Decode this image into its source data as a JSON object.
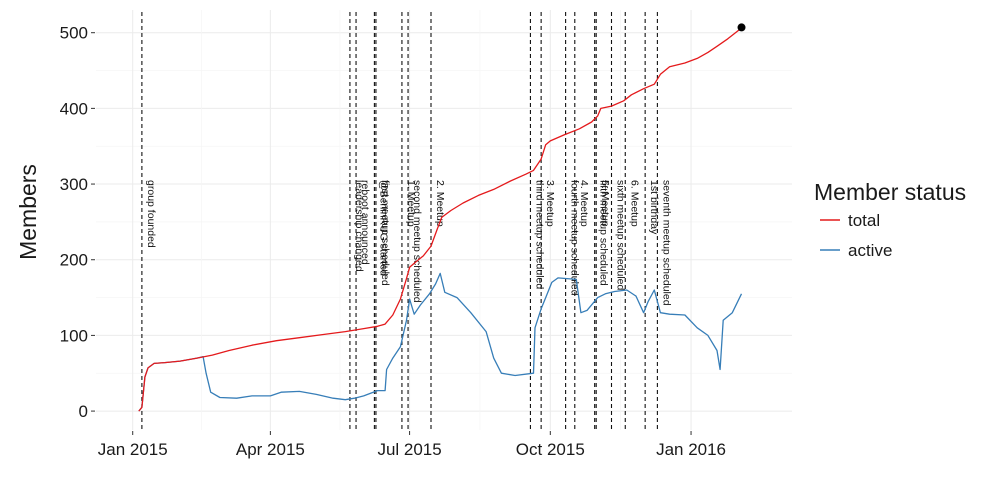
{
  "chart_data": {
    "type": "line",
    "title": "",
    "xlabel": "",
    "ylabel": "Members",
    "x_range": [
      "2014-12-08",
      "2016-03-07"
    ],
    "ylim": [
      -25,
      530
    ],
    "y_ticks": [
      0,
      100,
      200,
      300,
      400,
      500
    ],
    "x_ticks": [
      {
        "date": "2015-01-01",
        "label": "Jan 2015"
      },
      {
        "date": "2015-04-01",
        "label": "Apr 2015"
      },
      {
        "date": "2015-07-01",
        "label": "Jul 2015"
      },
      {
        "date": "2015-10-01",
        "label": "Oct 2015"
      },
      {
        "date": "2016-01-01",
        "label": "Jan 2016"
      }
    ],
    "grid": true,
    "legend": {
      "title": "Member status",
      "position": "right",
      "entries": [
        {
          "label": "total",
          "color": "#e41a1c"
        },
        {
          "label": "active",
          "color": "#377eb8"
        }
      ]
    },
    "series": [
      {
        "name": "total",
        "color": "#e41a1c",
        "points": [
          [
            "2015-01-05",
            0
          ],
          [
            "2015-01-07",
            5
          ],
          [
            "2015-01-09",
            45
          ],
          [
            "2015-01-11",
            57
          ],
          [
            "2015-01-15",
            63
          ],
          [
            "2015-01-22",
            64
          ],
          [
            "2015-02-01",
            66
          ],
          [
            "2015-02-12",
            70
          ],
          [
            "2015-02-22",
            74
          ],
          [
            "2015-03-05",
            80
          ],
          [
            "2015-03-20",
            87
          ],
          [
            "2015-04-05",
            93
          ],
          [
            "2015-04-20",
            97
          ],
          [
            "2015-05-05",
            101
          ],
          [
            "2015-05-20",
            105
          ],
          [
            "2015-06-01",
            109
          ],
          [
            "2015-06-10",
            112
          ],
          [
            "2015-06-15",
            115
          ],
          [
            "2015-06-20",
            127
          ],
          [
            "2015-06-25",
            148
          ],
          [
            "2015-06-29",
            175
          ],
          [
            "2015-07-01",
            190
          ],
          [
            "2015-07-05",
            197
          ],
          [
            "2015-07-10",
            205
          ],
          [
            "2015-07-15",
            218
          ],
          [
            "2015-07-19",
            240
          ],
          [
            "2015-07-22",
            256
          ],
          [
            "2015-07-28",
            265
          ],
          [
            "2015-08-05",
            275
          ],
          [
            "2015-08-15",
            285
          ],
          [
            "2015-08-25",
            293
          ],
          [
            "2015-09-05",
            304
          ],
          [
            "2015-09-15",
            313
          ],
          [
            "2015-09-20",
            318
          ],
          [
            "2015-09-25",
            333
          ],
          [
            "2015-09-28",
            352
          ],
          [
            "2015-10-01",
            357
          ],
          [
            "2015-10-10",
            365
          ],
          [
            "2015-10-20",
            373
          ],
          [
            "2015-10-28",
            382
          ],
          [
            "2015-11-01",
            390
          ],
          [
            "2015-11-03",
            400
          ],
          [
            "2015-11-10",
            403
          ],
          [
            "2015-11-18",
            410
          ],
          [
            "2015-11-23",
            418
          ],
          [
            "2015-12-01",
            426
          ],
          [
            "2015-12-08",
            432
          ],
          [
            "2015-12-12",
            445
          ],
          [
            "2015-12-18",
            455
          ],
          [
            "2015-12-28",
            460
          ],
          [
            "2016-01-05",
            466
          ],
          [
            "2016-01-12",
            474
          ],
          [
            "2016-01-18",
            482
          ],
          [
            "2016-01-25",
            492
          ],
          [
            "2016-02-01",
            503
          ],
          [
            "2016-02-03",
            507
          ]
        ]
      },
      {
        "name": "active",
        "color": "#377eb8",
        "points": [
          [
            "2015-01-05",
            0
          ],
          [
            "2015-01-07",
            5
          ],
          [
            "2015-01-09",
            45
          ],
          [
            "2015-01-11",
            57
          ],
          [
            "2015-01-15",
            63
          ],
          [
            "2015-01-22",
            64
          ],
          [
            "2015-02-01",
            66
          ],
          [
            "2015-02-12",
            70
          ],
          [
            "2015-02-16",
            72
          ],
          [
            "2015-02-18",
            50
          ],
          [
            "2015-02-21",
            25
          ],
          [
            "2015-02-27",
            18
          ],
          [
            "2015-03-10",
            17
          ],
          [
            "2015-03-20",
            20
          ],
          [
            "2015-04-01",
            20
          ],
          [
            "2015-04-08",
            25
          ],
          [
            "2015-04-20",
            26
          ],
          [
            "2015-05-01",
            22
          ],
          [
            "2015-05-12",
            17
          ],
          [
            "2015-05-20",
            15
          ],
          [
            "2015-05-26",
            17
          ],
          [
            "2015-06-01",
            20
          ],
          [
            "2015-06-10",
            27
          ],
          [
            "2015-06-15",
            27
          ],
          [
            "2015-06-16",
            55
          ],
          [
            "2015-06-20",
            70
          ],
          [
            "2015-06-25",
            85
          ],
          [
            "2015-06-29",
            120
          ],
          [
            "2015-07-01",
            148
          ],
          [
            "2015-07-04",
            128
          ],
          [
            "2015-07-08",
            140
          ],
          [
            "2015-07-14",
            155
          ],
          [
            "2015-07-18",
            168
          ],
          [
            "2015-07-21",
            182
          ],
          [
            "2015-07-24",
            157
          ],
          [
            "2015-08-01",
            150
          ],
          [
            "2015-08-10",
            130
          ],
          [
            "2015-08-20",
            105
          ],
          [
            "2015-08-25",
            70
          ],
          [
            "2015-08-30",
            50
          ],
          [
            "2015-09-08",
            47
          ],
          [
            "2015-09-20",
            50
          ],
          [
            "2015-09-21",
            110
          ],
          [
            "2015-09-25",
            135
          ],
          [
            "2015-09-28",
            150
          ],
          [
            "2015-10-02",
            170
          ],
          [
            "2015-10-06",
            176
          ],
          [
            "2015-10-18",
            174
          ],
          [
            "2015-10-21",
            130
          ],
          [
            "2015-10-25",
            133
          ],
          [
            "2015-11-01",
            150
          ],
          [
            "2015-11-06",
            155
          ],
          [
            "2015-11-12",
            158
          ],
          [
            "2015-11-20",
            160
          ],
          [
            "2015-11-26",
            152
          ],
          [
            "2015-12-01",
            130
          ],
          [
            "2015-12-04",
            145
          ],
          [
            "2015-12-08",
            160
          ],
          [
            "2015-12-12",
            130
          ],
          [
            "2015-12-18",
            128
          ],
          [
            "2015-12-28",
            127
          ],
          [
            "2016-01-05",
            110
          ],
          [
            "2016-01-12",
            100
          ],
          [
            "2016-01-18",
            80
          ],
          [
            "2016-01-20",
            55
          ],
          [
            "2016-01-22",
            120
          ],
          [
            "2016-01-28",
            130
          ],
          [
            "2016-02-03",
            155
          ]
        ]
      }
    ],
    "end_marker": {
      "date": "2016-02-03",
      "value": 507
    },
    "events": [
      {
        "date": "2015-01-07",
        "label": "group founded"
      },
      {
        "date": "2015-05-23",
        "label": "leadership changed"
      },
      {
        "date": "2015-05-27",
        "label": "reboot announced"
      },
      {
        "date": "2015-06-08",
        "label": "@BerlinRUG started"
      },
      {
        "date": "2015-06-09",
        "label": "first meetup scheduled"
      },
      {
        "date": "2015-06-26",
        "label": "1. Meetup"
      },
      {
        "date": "2015-06-30",
        "label": "second meetup scheduled"
      },
      {
        "date": "2015-07-15",
        "label": "2. Meetup"
      },
      {
        "date": "2015-09-18",
        "label": "third meetup scheduled"
      },
      {
        "date": "2015-09-25",
        "label": "3. Meetup"
      },
      {
        "date": "2015-10-11",
        "label": "fourth meetup scheduled"
      },
      {
        "date": "2015-10-17",
        "label": "4. Meetup"
      },
      {
        "date": "2015-10-30",
        "label": "fifth meetup scheduled"
      },
      {
        "date": "2015-10-31",
        "label": "5. Meetup"
      },
      {
        "date": "2015-11-10",
        "label": "sixth meetup scheduled"
      },
      {
        "date": "2015-11-19",
        "label": "6. Meetup"
      },
      {
        "date": "2015-12-02",
        "label": "1st birthday"
      },
      {
        "date": "2015-12-10",
        "label": "seventh meetup scheduled"
      }
    ]
  }
}
